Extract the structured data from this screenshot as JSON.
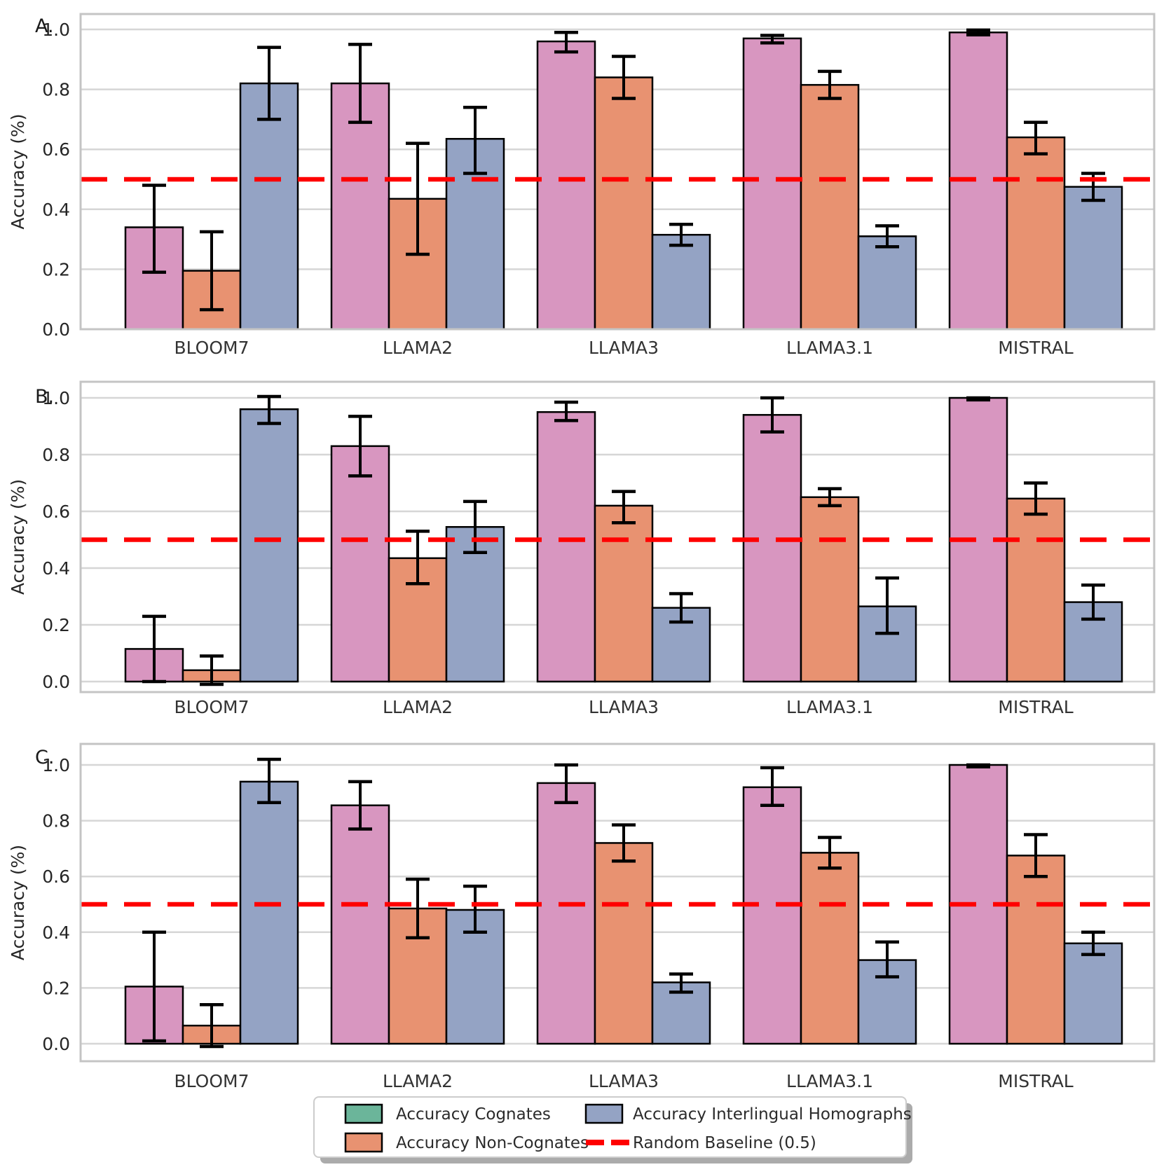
{
  "figure": {
    "panels": [
      {
        "label": "A.",
        "ylabel": "Accuracy (%)",
        "ytick_labels": [
          "0.0",
          "0.2",
          "0.4",
          "0.6",
          "0.8",
          "1.0"
        ]
      },
      {
        "label": "B.",
        "ylabel": "Accuracy (%)",
        "ytick_labels": [
          "0.0",
          "0.2",
          "0.4",
          "0.6",
          "0.8",
          "1.0"
        ]
      },
      {
        "label": "C.",
        "ylabel": "Accuracy (%)",
        "ytick_labels": [
          "0.0",
          "0.2",
          "0.4",
          "0.6",
          "0.8",
          "1.0"
        ]
      }
    ],
    "categories": [
      "BLOOM7",
      "LLAMA2",
      "LLAMA3",
      "LLAMA3.1",
      "MISTRAL"
    ]
  },
  "legend": {
    "entries": [
      {
        "label": "Accuracy Cognates",
        "swatch": "patch",
        "color": "#6BB59A"
      },
      {
        "label": "Accuracy Non-Cognates",
        "swatch": "patch",
        "color": "#E89271"
      },
      {
        "label": "Accuracy Interlingual Homographs",
        "swatch": "patch",
        "color": "#94A3C4"
      },
      {
        "label": "Random Baseline (0.5)",
        "swatch": "dashed-line",
        "color": "#FF0000"
      }
    ]
  },
  "colors": {
    "bar_cognates": "#D896C0",
    "bar_non_cognates": "#E89271",
    "bar_homographs": "#94A3C4",
    "legend_cognates_swatch": "#6BB59A",
    "baseline": "#FF0000",
    "bar_edge": "#000000",
    "grid": "#D6D6D6",
    "spine": "#C4C4C4",
    "text": "#262626"
  },
  "chart_data": [
    {
      "type": "bar",
      "panel": "A.",
      "title": "",
      "xlabel": "",
      "ylabel": "Accuracy (%)",
      "categories": [
        "BLOOM7",
        "LLAMA2",
        "LLAMA3",
        "LLAMA3.1",
        "MISTRAL"
      ],
      "yticks": [
        0.0,
        0.2,
        0.4,
        0.6,
        0.8,
        1.0
      ],
      "ylim": [
        0.0,
        1.05
      ],
      "grid": true,
      "baseline": 0.5,
      "series": [
        {
          "name": "Accuracy Cognates",
          "values": [
            0.34,
            0.82,
            0.96,
            0.97,
            0.99
          ],
          "err_low": [
            0.19,
            0.69,
            0.925,
            0.955,
            0.982
          ],
          "err_high": [
            0.48,
            0.95,
            0.99,
            0.98,
            0.998
          ]
        },
        {
          "name": "Accuracy Non-Cognates",
          "values": [
            0.195,
            0.435,
            0.84,
            0.815,
            0.64
          ],
          "err_low": [
            0.065,
            0.25,
            0.77,
            0.77,
            0.585
          ],
          "err_high": [
            0.325,
            0.62,
            0.91,
            0.86,
            0.69
          ]
        },
        {
          "name": "Accuracy Interlingual Homographs",
          "values": [
            0.82,
            0.635,
            0.315,
            0.31,
            0.475
          ],
          "err_low": [
            0.7,
            0.52,
            0.28,
            0.275,
            0.43
          ],
          "err_high": [
            0.94,
            0.74,
            0.35,
            0.345,
            0.52
          ]
        }
      ]
    },
    {
      "type": "bar",
      "panel": "B.",
      "title": "",
      "xlabel": "",
      "ylabel": "Accuracy (%)",
      "categories": [
        "BLOOM7",
        "LLAMA2",
        "LLAMA3",
        "LLAMA3.1",
        "MISTRAL"
      ],
      "yticks": [
        0.0,
        0.2,
        0.4,
        0.6,
        0.8,
        1.0
      ],
      "ylim": [
        -0.04,
        1.06
      ],
      "grid": true,
      "baseline": 0.5,
      "series": [
        {
          "name": "Accuracy Cognates",
          "values": [
            0.115,
            0.83,
            0.95,
            0.94,
            1.0
          ],
          "err_low": [
            0.0,
            0.725,
            0.92,
            0.88,
            0.993
          ],
          "err_high": [
            0.23,
            0.935,
            0.985,
            1.0,
            1.0
          ]
        },
        {
          "name": "Accuracy Non-Cognates",
          "values": [
            0.04,
            0.435,
            0.62,
            0.65,
            0.645
          ],
          "err_low": [
            -0.01,
            0.345,
            0.56,
            0.62,
            0.59
          ],
          "err_high": [
            0.09,
            0.53,
            0.67,
            0.68,
            0.7
          ]
        },
        {
          "name": "Accuracy Interlingual Homographs",
          "values": [
            0.96,
            0.545,
            0.26,
            0.265,
            0.28
          ],
          "err_low": [
            0.91,
            0.455,
            0.21,
            0.17,
            0.22
          ],
          "err_high": [
            1.005,
            0.635,
            0.31,
            0.365,
            0.34
          ]
        }
      ]
    },
    {
      "type": "bar",
      "panel": "C.",
      "title": "",
      "xlabel": "",
      "ylabel": "Accuracy (%)",
      "categories": [
        "BLOOM7",
        "LLAMA2",
        "LLAMA3",
        "LLAMA3.1",
        "MISTRAL"
      ],
      "yticks": [
        0.0,
        0.2,
        0.4,
        0.6,
        0.8,
        1.0
      ],
      "ylim": [
        -0.06,
        1.075
      ],
      "grid": true,
      "baseline": 0.5,
      "series": [
        {
          "name": "Accuracy Cognates",
          "values": [
            0.205,
            0.855,
            0.935,
            0.92,
            1.0
          ],
          "err_low": [
            0.01,
            0.77,
            0.865,
            0.855,
            0.993
          ],
          "err_high": [
            0.4,
            0.94,
            1.0,
            0.99,
            1.0
          ]
        },
        {
          "name": "Accuracy Non-Cognates",
          "values": [
            0.065,
            0.485,
            0.72,
            0.685,
            0.675
          ],
          "err_low": [
            -0.01,
            0.38,
            0.655,
            0.63,
            0.6
          ],
          "err_high": [
            0.14,
            0.59,
            0.785,
            0.74,
            0.75
          ]
        },
        {
          "name": "Accuracy Interlingual Homographs",
          "values": [
            0.94,
            0.48,
            0.22,
            0.3,
            0.36
          ],
          "err_low": [
            0.865,
            0.4,
            0.185,
            0.24,
            0.32
          ],
          "err_high": [
            1.02,
            0.565,
            0.25,
            0.365,
            0.4
          ]
        }
      ]
    }
  ]
}
